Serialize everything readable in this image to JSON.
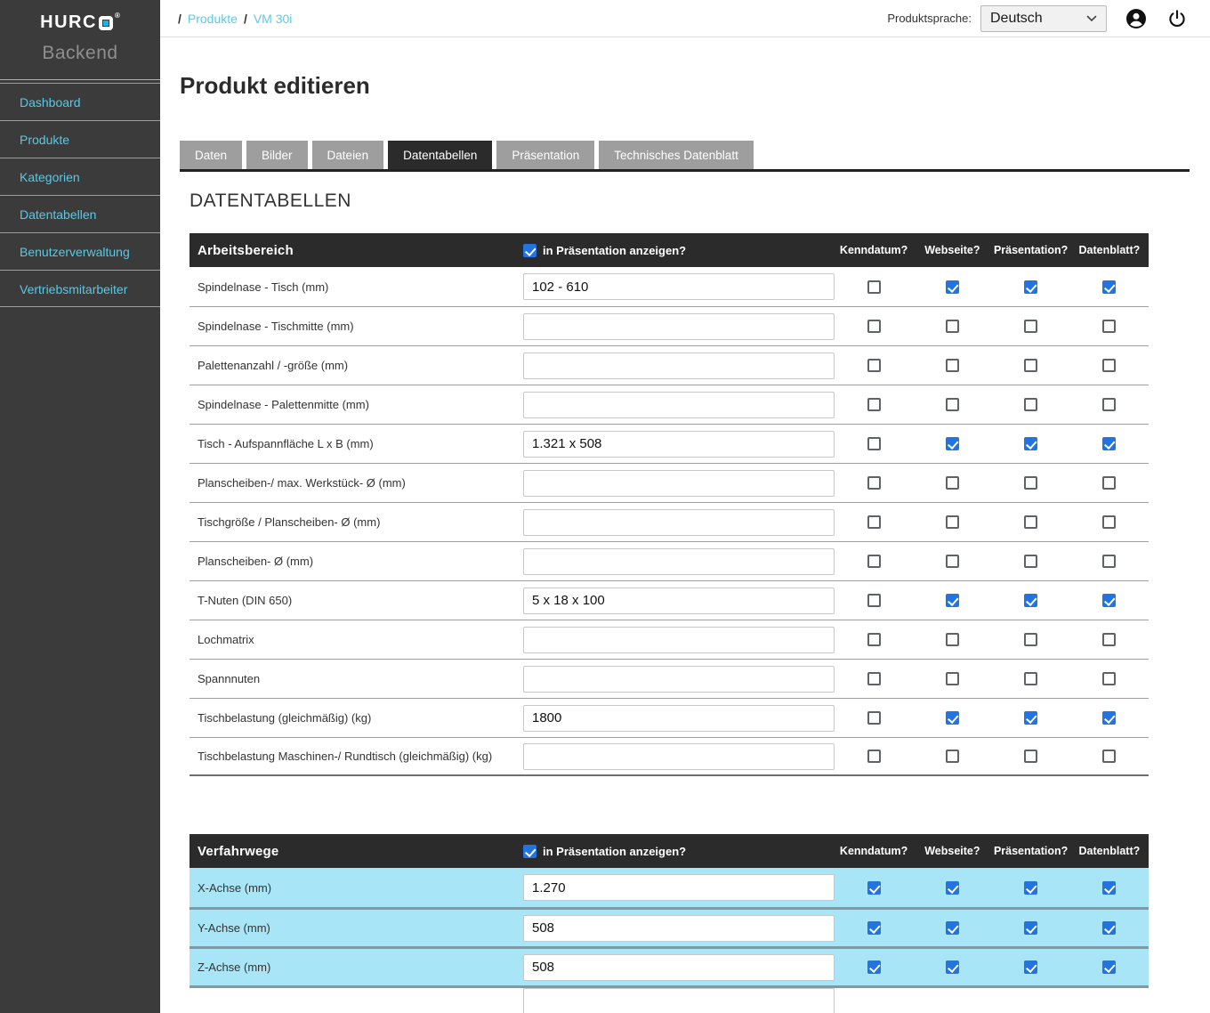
{
  "brand": {
    "text": "HURC",
    "registered": "®",
    "subtitle": "Backend",
    "logo_accent_color": "#1ab2e8"
  },
  "sidebar": {
    "items": [
      "Dashboard",
      "Produkte",
      "Kategorien",
      "Datentabellen",
      "Benutzerverwaltung",
      "Vertriebsmitarbeiter"
    ]
  },
  "topbar": {
    "breadcrumb_separator": "/",
    "breadcrumb": [
      "Produkte",
      "VM 30i"
    ],
    "language_label": "Produktsprache:",
    "language_value": "Deutsch"
  },
  "page": {
    "title": "Produkt editieren",
    "section_heading": "DATENTABELLEN",
    "tabs": [
      {
        "label": "Daten",
        "active": false
      },
      {
        "label": "Bilder",
        "active": false
      },
      {
        "label": "Dateien",
        "active": false
      },
      {
        "label": "Datentabellen",
        "active": true
      },
      {
        "label": "Präsentation",
        "active": false
      },
      {
        "label": "Technisches Datenblatt",
        "active": false
      }
    ]
  },
  "columns": [
    "Kenndatum?",
    "Webseite?",
    "Präsentation?",
    "Datenblatt?"
  ],
  "presentation_toggle_label": "in Präsentation anzeigen?",
  "tables": [
    {
      "title": "Arbeitsbereich",
      "show_in_presentation": true,
      "highlighted": false,
      "rows": [
        {
          "label": "Spindelnase - Tisch (mm)",
          "value": "102 - 610",
          "checks": [
            false,
            true,
            true,
            true
          ]
        },
        {
          "label": "Spindelnase - Tischmitte (mm)",
          "value": "",
          "checks": [
            false,
            false,
            false,
            false
          ]
        },
        {
          "label": "Palettenanzahl / -größe (mm)",
          "value": "",
          "checks": [
            false,
            false,
            false,
            false
          ]
        },
        {
          "label": "Spindelnase - Palettenmitte (mm)",
          "value": "",
          "checks": [
            false,
            false,
            false,
            false
          ]
        },
        {
          "label": "Tisch - Aufspannfläche L x B (mm)",
          "value": "1.321 x 508",
          "checks": [
            false,
            true,
            true,
            true
          ]
        },
        {
          "label": "Planscheiben-/ max. Werkstück- Ø (mm)",
          "value": "",
          "checks": [
            false,
            false,
            false,
            false
          ]
        },
        {
          "label": "Tischgröße / Planscheiben- Ø (mm)",
          "value": "",
          "checks": [
            false,
            false,
            false,
            false
          ]
        },
        {
          "label": "Planscheiben- Ø (mm)",
          "value": "",
          "checks": [
            false,
            false,
            false,
            false
          ]
        },
        {
          "label": "T-Nuten (DIN 650)",
          "value": "5 x 18 x 100",
          "checks": [
            false,
            true,
            true,
            true
          ]
        },
        {
          "label": "Lochmatrix",
          "value": "",
          "checks": [
            false,
            false,
            false,
            false
          ]
        },
        {
          "label": "Spannnuten",
          "value": "",
          "checks": [
            false,
            false,
            false,
            false
          ]
        },
        {
          "label": "Tischbelastung (gleichmäßig) (kg)",
          "value": "1800",
          "checks": [
            false,
            true,
            true,
            true
          ]
        },
        {
          "label": "Tischbelastung Maschinen-/ Rundtisch (gleichmäßig) (kg)",
          "value": "",
          "checks": [
            false,
            false,
            false,
            false
          ]
        }
      ]
    },
    {
      "title": "Verfahrwege",
      "show_in_presentation": true,
      "highlighted": true,
      "partial_next_row": true,
      "rows": [
        {
          "label": "X-Achse (mm)",
          "value": "1.270",
          "checks": [
            true,
            true,
            true,
            true
          ]
        },
        {
          "label": "Y-Achse (mm)",
          "value": "508",
          "checks": [
            true,
            true,
            true,
            true
          ]
        },
        {
          "label": "Z-Achse (mm)",
          "value": "508",
          "checks": [
            true,
            true,
            true,
            true
          ]
        }
      ]
    }
  ],
  "colors": {
    "sidebar_bg": "#3b3b3b",
    "accent_cyan": "#54cbe8",
    "checkbox_blue": "#2374e1",
    "highlight_row": "#a8e6f7",
    "header_dark": "#2b2b2b",
    "tab_inactive": "#9e9e9e"
  }
}
